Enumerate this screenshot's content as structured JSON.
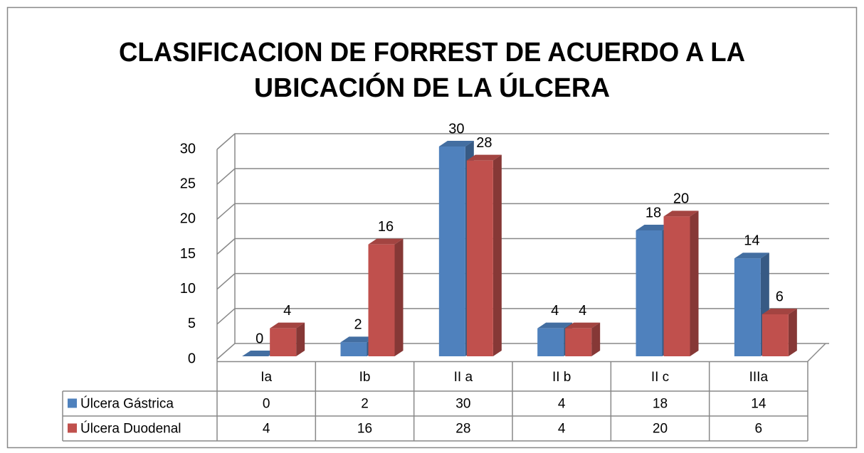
{
  "chart_data": {
    "type": "bar",
    "title": [
      "CLASIFICACION DE FORREST DE ACUERDO A LA",
      "UBICACIÓN DE LA ÚLCERA"
    ],
    "categories": [
      "Ia",
      "Ib",
      "II a",
      "II b",
      "II c",
      "IIIa"
    ],
    "series": [
      {
        "name": "Úlcera Gástrica",
        "color": "#4f81bd",
        "values": [
          0,
          2,
          30,
          4,
          18,
          14
        ]
      },
      {
        "name": "Úlcera Duodenal",
        "color": "#c0504d",
        "values": [
          4,
          16,
          28,
          4,
          20,
          6
        ]
      }
    ],
    "ylim": [
      0,
      30
    ],
    "yticks": [
      0,
      5,
      10,
      15,
      20,
      25,
      30
    ],
    "grid": true
  }
}
